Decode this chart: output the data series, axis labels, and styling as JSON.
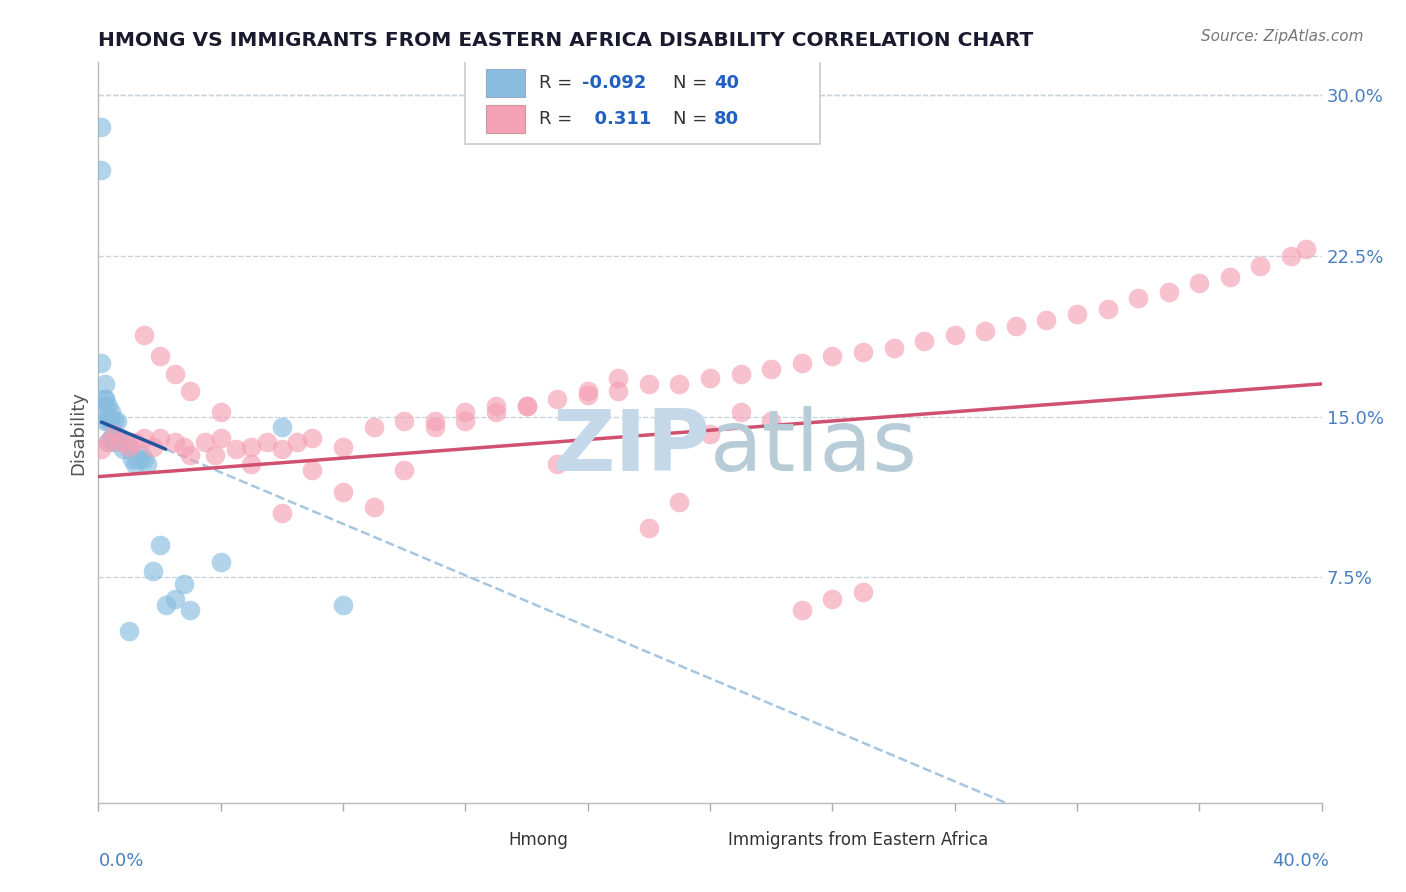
{
  "title": "HMONG VS IMMIGRANTS FROM EASTERN AFRICA DISABILITY CORRELATION CHART",
  "source": "Source: ZipAtlas.com",
  "ylabel": "Disability",
  "xlim": [
    0.0,
    0.4
  ],
  "ylim": [
    -0.03,
    0.315
  ],
  "yticks": [
    0.075,
    0.15,
    0.225,
    0.3
  ],
  "ytick_labels": [
    "7.5%",
    "15.0%",
    "22.5%",
    "30.0%"
  ],
  "color_blue": "#88bde0",
  "color_pink": "#f4a0b5",
  "color_trendline_blue": "#2255a0",
  "color_trendline_pink": "#d05070",
  "color_dashed": "#90b8d8",
  "watermark_color": "#c5d8ea",
  "background_color": "#ffffff",
  "grid_color": "#c8d4dd",
  "legend_label_blue": "Hmong",
  "legend_label_pink": "Immigrants from Eastern Africa",
  "hmong_x": [
    0.001,
    0.001,
    0.001,
    0.002,
    0.002,
    0.002,
    0.002,
    0.002,
    0.003,
    0.003,
    0.003,
    0.003,
    0.004,
    0.004,
    0.004,
    0.005,
    0.005,
    0.005,
    0.006,
    0.006,
    0.007,
    0.008,
    0.009,
    0.01,
    0.011,
    0.012,
    0.013,
    0.014,
    0.015,
    0.016,
    0.018,
    0.02,
    0.022,
    0.025,
    0.028,
    0.03,
    0.04,
    0.06,
    0.08,
    0.01
  ],
  "hmong_y": [
    0.285,
    0.265,
    0.175,
    0.165,
    0.158,
    0.158,
    0.155,
    0.148,
    0.155,
    0.15,
    0.148,
    0.138,
    0.152,
    0.148,
    0.14,
    0.148,
    0.142,
    0.138,
    0.148,
    0.14,
    0.14,
    0.135,
    0.138,
    0.135,
    0.13,
    0.128,
    0.13,
    0.132,
    0.13,
    0.128,
    0.078,
    0.09,
    0.062,
    0.065,
    0.072,
    0.06,
    0.082,
    0.145,
    0.062,
    0.05
  ],
  "eastern_africa_x": [
    0.001,
    0.003,
    0.005,
    0.007,
    0.01,
    0.012,
    0.015,
    0.018,
    0.02,
    0.025,
    0.028,
    0.03,
    0.035,
    0.038,
    0.04,
    0.045,
    0.05,
    0.055,
    0.06,
    0.065,
    0.07,
    0.08,
    0.09,
    0.1,
    0.11,
    0.12,
    0.13,
    0.14,
    0.15,
    0.16,
    0.17,
    0.18,
    0.19,
    0.2,
    0.21,
    0.22,
    0.23,
    0.24,
    0.25,
    0.26,
    0.27,
    0.28,
    0.29,
    0.3,
    0.31,
    0.32,
    0.33,
    0.34,
    0.35,
    0.36,
    0.37,
    0.38,
    0.39,
    0.395,
    0.015,
    0.02,
    0.025,
    0.03,
    0.04,
    0.05,
    0.06,
    0.07,
    0.08,
    0.09,
    0.1,
    0.11,
    0.12,
    0.13,
    0.14,
    0.15,
    0.16,
    0.17,
    0.18,
    0.19,
    0.2,
    0.21,
    0.22,
    0.23,
    0.24,
    0.25
  ],
  "eastern_africa_y": [
    0.135,
    0.138,
    0.142,
    0.138,
    0.136,
    0.138,
    0.14,
    0.136,
    0.14,
    0.138,
    0.136,
    0.132,
    0.138,
    0.132,
    0.14,
    0.135,
    0.136,
    0.138,
    0.135,
    0.138,
    0.14,
    0.136,
    0.145,
    0.148,
    0.148,
    0.152,
    0.155,
    0.155,
    0.158,
    0.16,
    0.162,
    0.165,
    0.165,
    0.168,
    0.17,
    0.172,
    0.175,
    0.178,
    0.18,
    0.182,
    0.185,
    0.188,
    0.19,
    0.192,
    0.195,
    0.198,
    0.2,
    0.205,
    0.208,
    0.212,
    0.215,
    0.22,
    0.225,
    0.228,
    0.188,
    0.178,
    0.17,
    0.162,
    0.152,
    0.128,
    0.105,
    0.125,
    0.115,
    0.108,
    0.125,
    0.145,
    0.148,
    0.152,
    0.155,
    0.128,
    0.162,
    0.168,
    0.098,
    0.11,
    0.142,
    0.152,
    0.148,
    0.06,
    0.065,
    0.068
  ]
}
